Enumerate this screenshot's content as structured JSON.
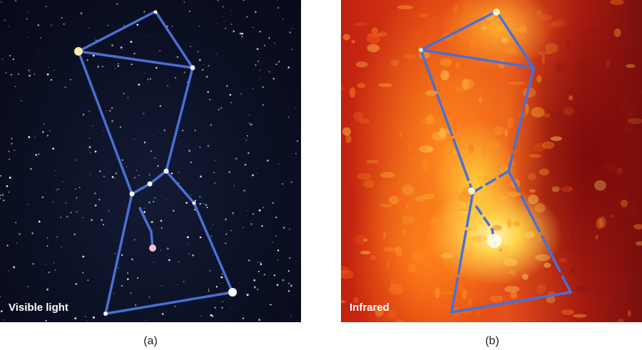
{
  "panels": [
    {
      "label": "Visible light",
      "caption": "(a)"
    },
    {
      "label": "Infrared",
      "caption": "(b)"
    }
  ],
  "colors": {
    "constellation_line": "#4a6fd6",
    "visible_background": "#0b1024",
    "infrared_background": "#d8380f"
  }
}
